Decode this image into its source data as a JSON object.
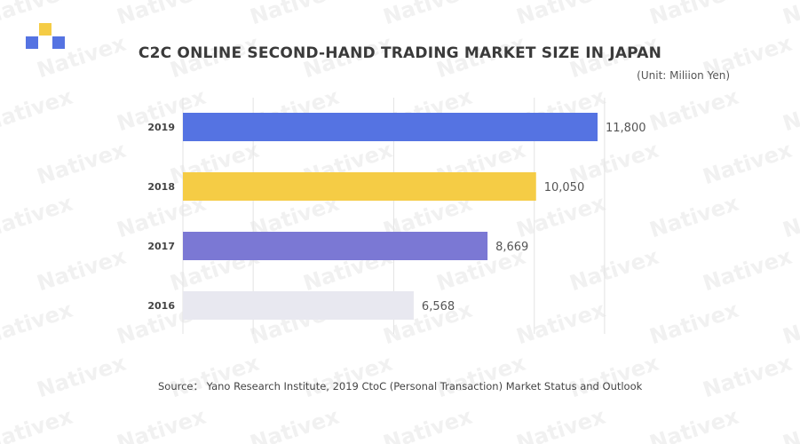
{
  "watermark_text": "Nativex",
  "logo": {
    "colors": [
      "#f5cc45",
      "#5573e2",
      "#5573e2"
    ]
  },
  "title": "C2C ONLINE SECOND-HAND TRADING MARKET SIZE IN JAPAN",
  "unit_label": "(Unit: Miliion Yen)",
  "source": "Source：  Yano Research Institute, 2019 CtoC (Personal Transaction) Market Status and Outlook",
  "chart_data": {
    "type": "bar",
    "orientation": "horizontal",
    "categories": [
      "2019",
      "2018",
      "2017",
      "2016"
    ],
    "values": [
      11800,
      10050,
      8669,
      6568
    ],
    "value_labels": [
      "11,800",
      "10,050",
      "8,669",
      "6,568"
    ],
    "colors": [
      "#5573e2",
      "#f5cc45",
      "#7b78d4",
      "#e8e8f0"
    ],
    "title": "C2C ONLINE SECOND-HAND TRADING MARKET SIZE IN JAPAN",
    "xlim": [
      0,
      12500
    ],
    "grid": true,
    "legend": "none"
  }
}
